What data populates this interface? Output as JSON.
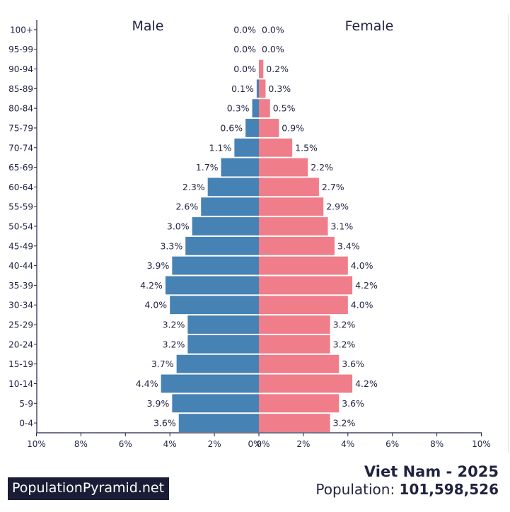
{
  "chart_data": {
    "type": "bar",
    "orientation": "horizontal-pyramid",
    "left_label": "Male",
    "right_label": "Female",
    "age_groups": [
      "0-4",
      "5-9",
      "10-14",
      "15-19",
      "20-24",
      "25-29",
      "30-34",
      "35-39",
      "40-44",
      "45-49",
      "50-54",
      "55-59",
      "60-64",
      "65-69",
      "70-74",
      "75-79",
      "80-84",
      "85-89",
      "90-94",
      "95-99",
      "100+"
    ],
    "series": [
      {
        "name": "Male",
        "color": "#4682b4",
        "values": [
          3.6,
          3.9,
          4.4,
          3.7,
          3.2,
          3.2,
          4.0,
          4.2,
          3.9,
          3.3,
          3.0,
          2.6,
          2.3,
          1.7,
          1.1,
          0.6,
          0.3,
          0.1,
          0.0,
          0.0,
          0.0
        ]
      },
      {
        "name": "Female",
        "color": "#f07d8a",
        "values": [
          3.2,
          3.6,
          4.2,
          3.6,
          3.2,
          3.2,
          4.0,
          4.2,
          4.0,
          3.4,
          3.1,
          2.9,
          2.7,
          2.2,
          1.5,
          0.9,
          0.5,
          0.3,
          0.2,
          0.0,
          0.0
        ]
      }
    ],
    "x_ticks_left": [
      "10%",
      "8%",
      "6%",
      "4%",
      "2%",
      "0%"
    ],
    "x_ticks_right": [
      "0%",
      "2%",
      "4%",
      "6%",
      "8%",
      "10%"
    ],
    "xlim": [
      0,
      10
    ]
  },
  "footer": {
    "brand": "PopulationPyramid.net",
    "country_year": "Viet Nam - 2025",
    "population_label": "Population:",
    "population_value": "101,598,526"
  }
}
